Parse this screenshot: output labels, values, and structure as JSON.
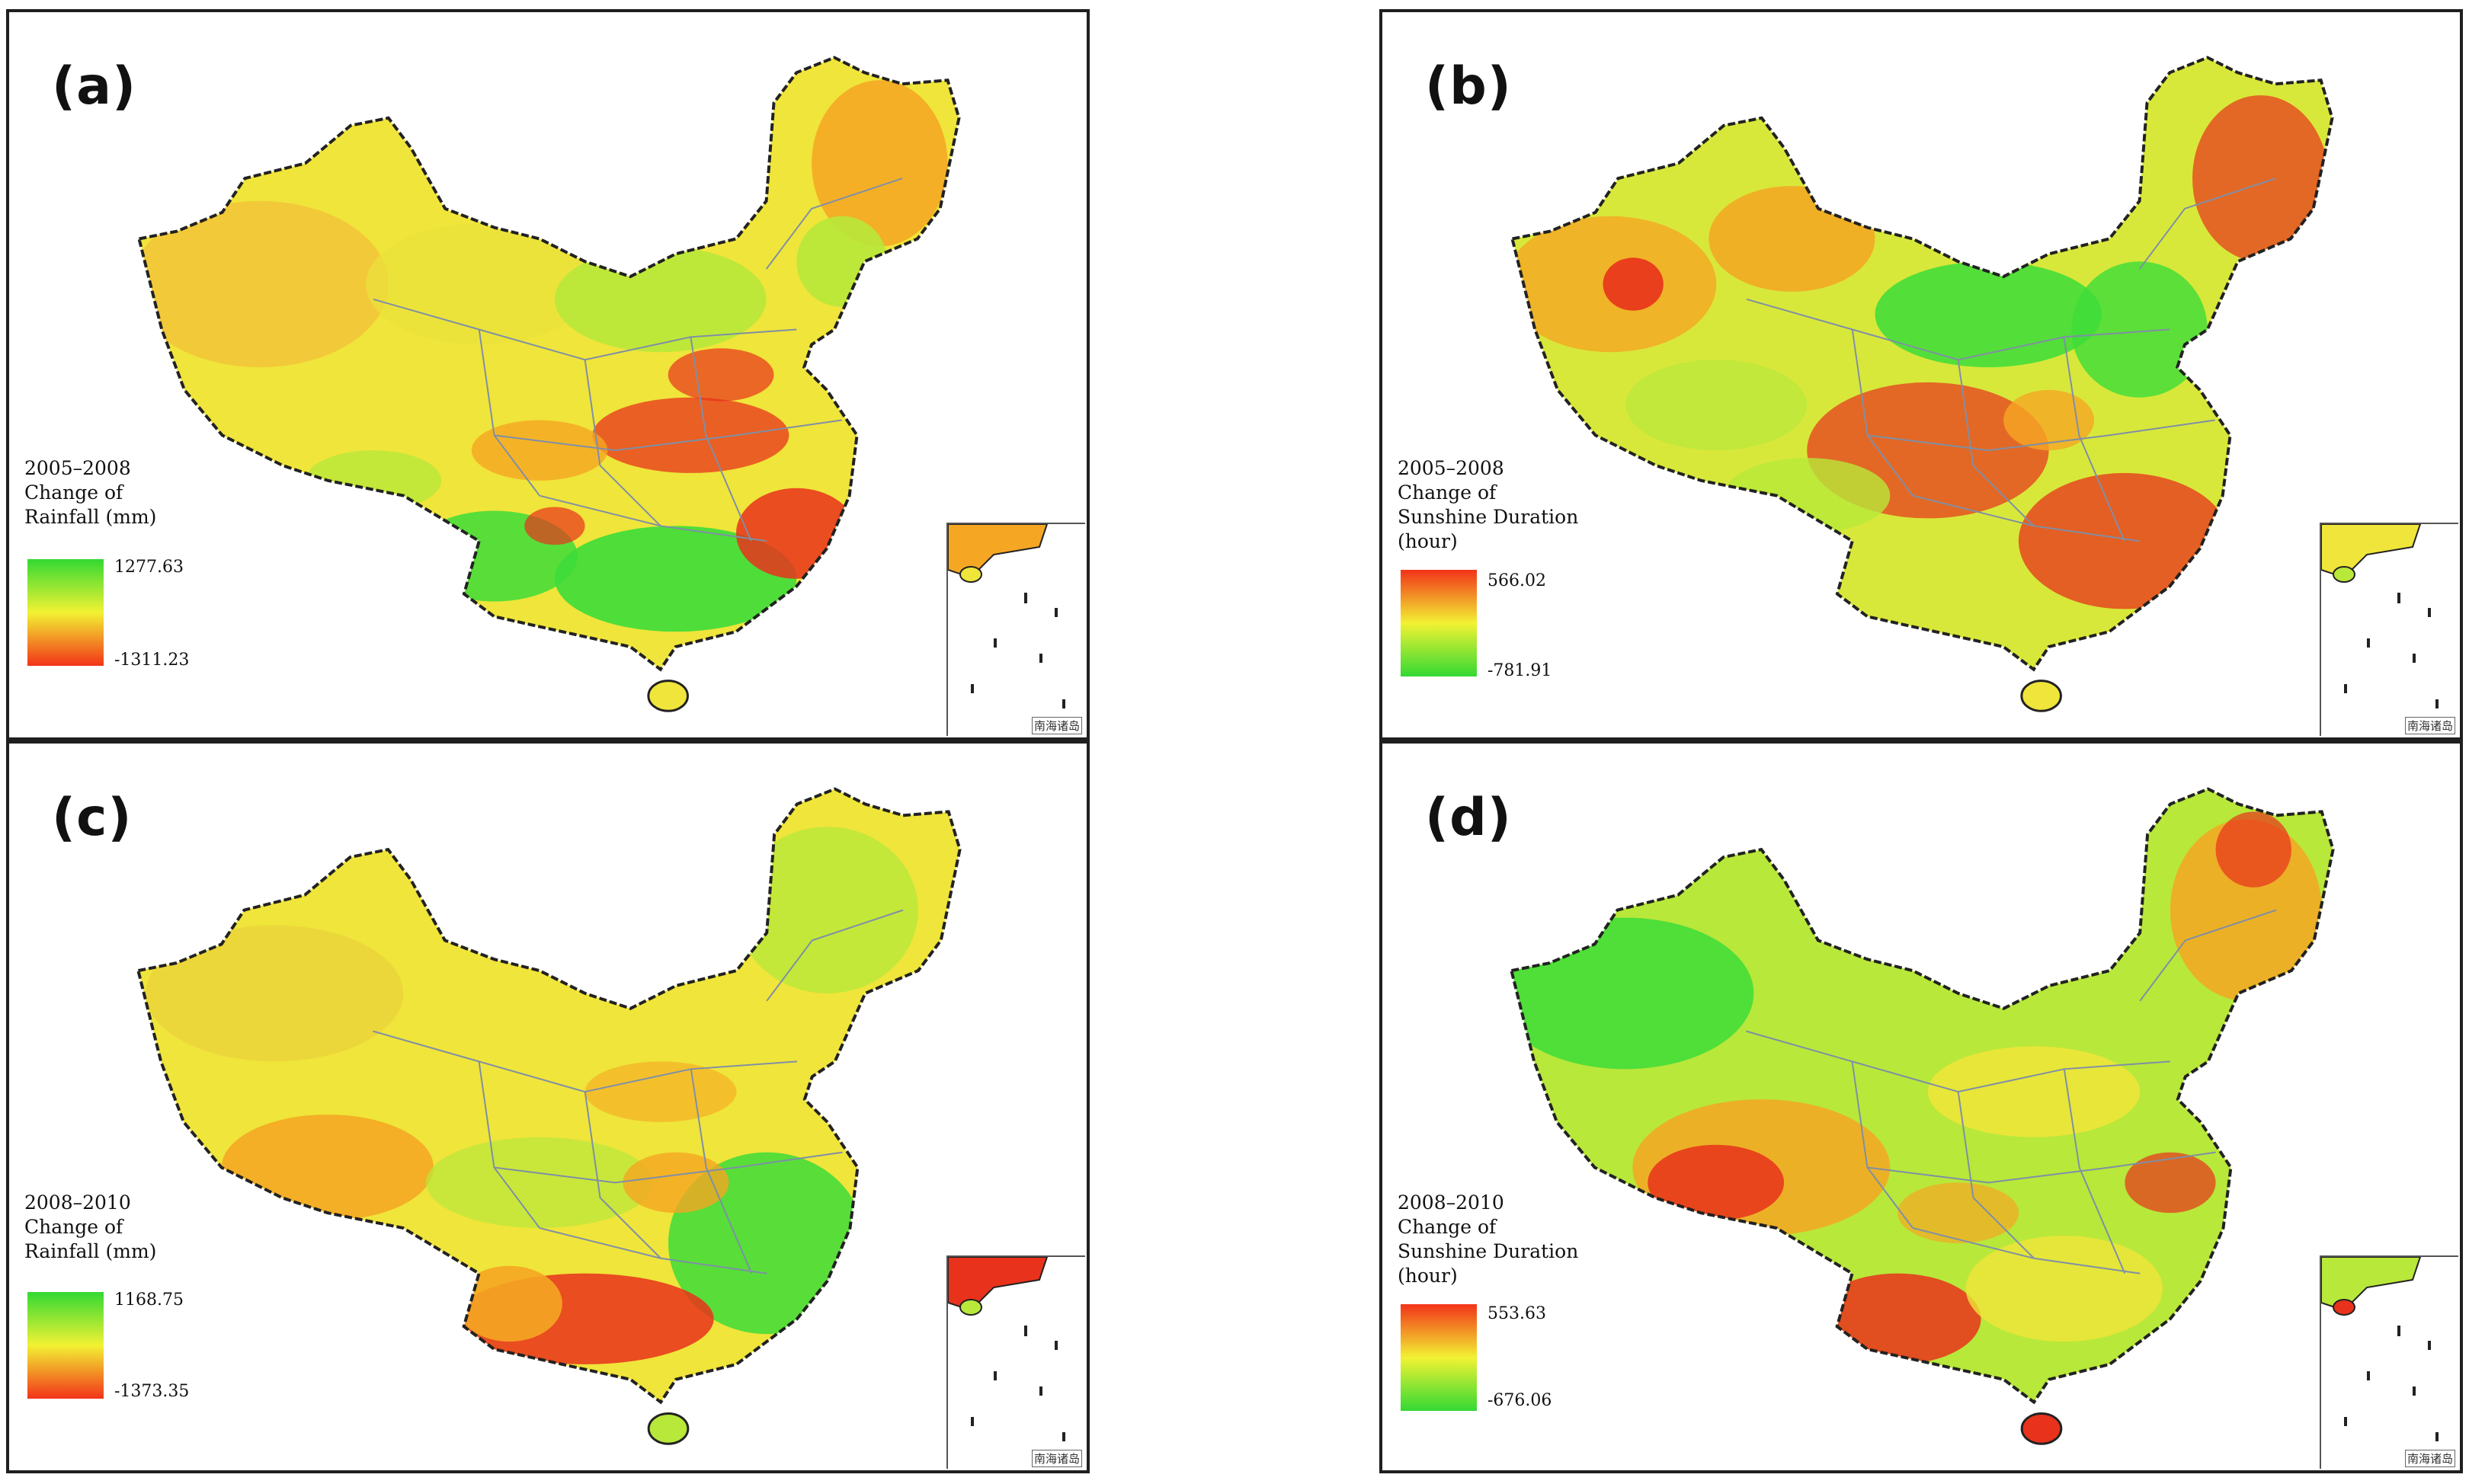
{
  "figure": {
    "panels": [
      {
        "id": "a",
        "letter": "(a)",
        "period": "2005–2008",
        "variable_line1": "Change of",
        "variable_line2": "Rainfall (mm)",
        "variable_line3": "",
        "max_label": "1277.63",
        "min_label": "-1311.23",
        "scale_top_color": "#33d933",
        "scale_mid_color": "#f2f233",
        "scale_bottom_color": "#f23319",
        "inset_label": "南海诸岛"
      },
      {
        "id": "b",
        "letter": "(b)",
        "period": "2005–2008",
        "variable_line1": "Change of",
        "variable_line2": "Sunshine Duration",
        "variable_line3": "(hour)",
        "max_label": "566.02",
        "min_label": "-781.91",
        "scale_top_color": "#f23319",
        "scale_mid_color": "#f2f233",
        "scale_bottom_color": "#33d933",
        "inset_label": "南海诸岛"
      },
      {
        "id": "c",
        "letter": "(c)",
        "period": "2008–2010",
        "variable_line1": "Change of",
        "variable_line2": "Rainfall (mm)",
        "variable_line3": "",
        "max_label": "1168.75",
        "min_label": "-1373.35",
        "scale_top_color": "#33d933",
        "scale_mid_color": "#f2f233",
        "scale_bottom_color": "#f23319",
        "inset_label": "南海诸岛"
      },
      {
        "id": "d",
        "letter": "(d)",
        "period": "2008–2010",
        "variable_line1": "Change of",
        "variable_line2": "Sunshine Duration",
        "variable_line3": "(hour)",
        "max_label": "553.63",
        "min_label": "-676.06",
        "scale_top_color": "#f23319",
        "scale_mid_color": "#f2f233",
        "scale_bottom_color": "#33d933",
        "inset_label": "南海诸岛"
      }
    ],
    "colors": {
      "green": "#3ddc3a",
      "yellow_green": "#b8e83a",
      "yellow": "#f0e53a",
      "orange": "#f5a623",
      "red": "#e8321c",
      "border": "#222222",
      "province_line": "#7f8fa6",
      "sea": "#ffffff"
    }
  }
}
